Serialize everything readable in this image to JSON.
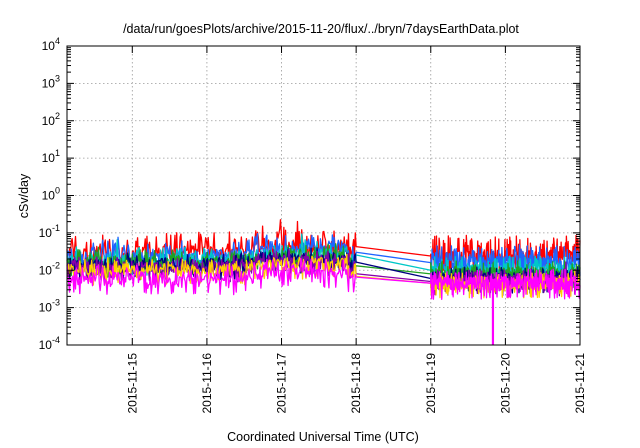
{
  "chart_data": {
    "type": "line",
    "title": "/data/run/goesPlots/archive/2015-11-20/flux/../bryn/7daysEarthData.plot",
    "xlabel": "Coordinated Universal Time (UTC)",
    "ylabel": "cSv/day",
    "y_scale": "log",
    "ylim": [
      0.0001,
      10000
    ],
    "y_ticks": [
      {
        "base": "10",
        "exp": "4"
      },
      {
        "base": "10",
        "exp": "3"
      },
      {
        "base": "10",
        "exp": "2"
      },
      {
        "base": "10",
        "exp": "1"
      },
      {
        "base": "10",
        "exp": "0"
      },
      {
        "base": "10",
        "exp": "-1"
      },
      {
        "base": "10",
        "exp": "-2"
      },
      {
        "base": "10",
        "exp": "-3"
      },
      {
        "base": "10",
        "exp": "-4"
      }
    ],
    "xlim": [
      "2015-11-14T03:00",
      "2015-11-21T00:00"
    ],
    "x_ticks": [
      "2015-11-15",
      "2015-11-16",
      "2015-11-17",
      "2015-11-18",
      "2015-11-19",
      "2015-11-20",
      "2015-11-21"
    ],
    "grid": true,
    "data_gap": [
      "2015-11-18",
      "2015-11-19"
    ],
    "dip": {
      "x": "2015-11-19T20:00",
      "y": 0.0001
    },
    "series": [
      {
        "color": "#ff0000",
        "level_before": 0.03,
        "level_after": 0.024,
        "noise_up": 2.4,
        "noise_down": 0.45,
        "spike": 1
      },
      {
        "color": "#1e64ff",
        "level_before": 0.024,
        "level_after": 0.016,
        "noise_up": 1.9,
        "noise_down": 0.55,
        "spike": 0.85
      },
      {
        "color": "#00c8c8",
        "level_before": 0.018,
        "level_after": 0.01,
        "noise_up": 1.6,
        "noise_down": 0.6,
        "spike": 0.6
      },
      {
        "color": "#20a020",
        "level_before": 0.016,
        "level_after": 0.008,
        "noise_up": 1.5,
        "noise_down": 0.6,
        "spike": 0.5
      },
      {
        "color": "#000080",
        "level_before": 0.014,
        "level_after": 0.006,
        "noise_up": 1.4,
        "noise_down": 0.6,
        "spike": 0.4
      },
      {
        "color": "#8800aa",
        "level_before": 0.012,
        "level_after": 0.005,
        "noise_up": 1.4,
        "noise_down": 0.6,
        "spike": 0.4
      },
      {
        "color": "#ffd000",
        "level_before": 0.01,
        "level_after": 0.0045,
        "noise_up": 1.3,
        "noise_down": 0.6,
        "spike": 0.3
      },
      {
        "color": "#ff00ff",
        "level_before": 0.006,
        "level_after": 0.0045,
        "noise_up": 1.6,
        "noise_down": 0.55,
        "spike": 0.4
      }
    ]
  }
}
